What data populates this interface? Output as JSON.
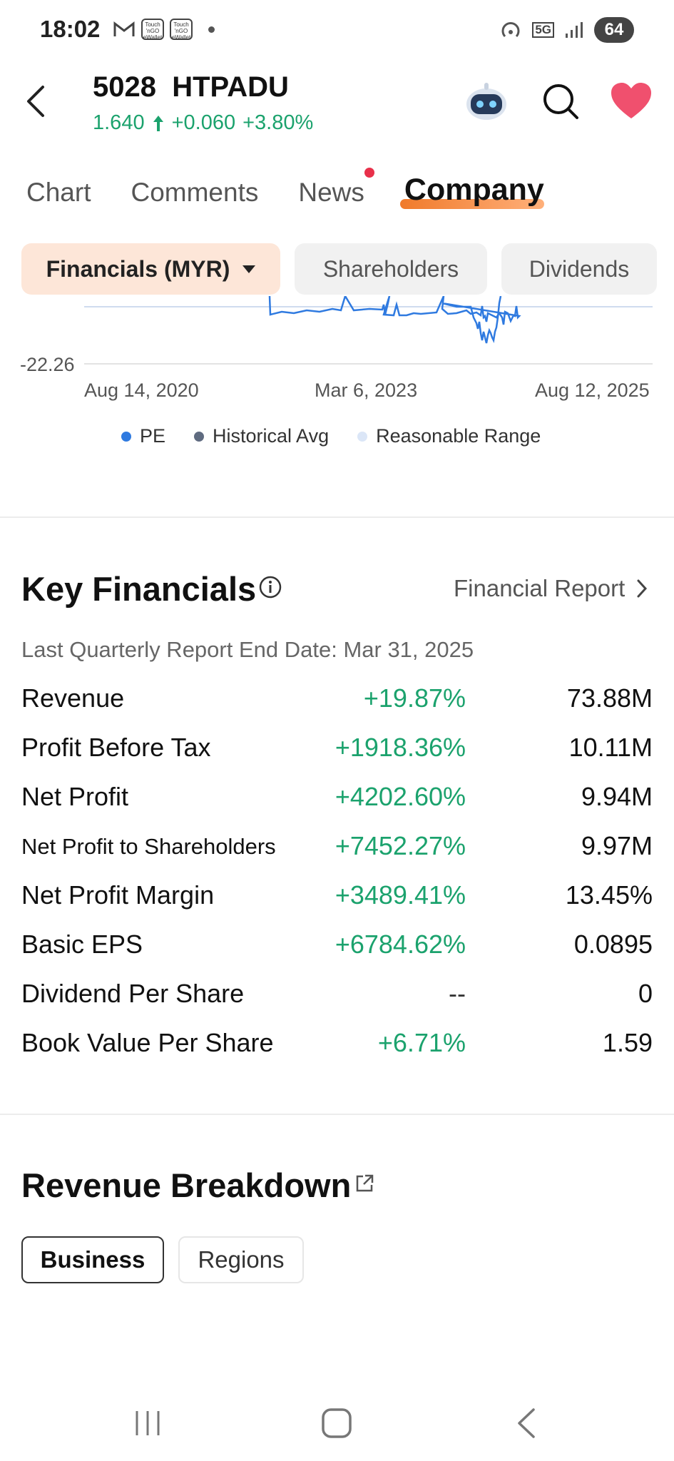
{
  "status_bar": {
    "time": "18:02",
    "left_icons": [
      "gmail-icon",
      "touch-n-go-icon",
      "touch-n-go-icon",
      "dot-icon"
    ],
    "badge_line1": "Touch",
    "badge_line2": "'nGO",
    "badge_line3": "eWallet",
    "network": "5G",
    "battery": "64"
  },
  "header": {
    "code": "5028",
    "name": "HTPADU",
    "price": "1.640",
    "change": "+0.060",
    "change_pct": "+3.80%",
    "up_color": "#1ba26d"
  },
  "tabs": [
    {
      "label": "Chart"
    },
    {
      "label": "Comments"
    },
    {
      "label": "News"
    },
    {
      "label": "Company"
    }
  ],
  "active_tab": "Company",
  "subtabs": {
    "selected": "Financials (MYR)",
    "others": [
      "Shareholders",
      "Dividends"
    ]
  },
  "chart_data": {
    "type": "line",
    "ymin_label": "-22.26",
    "x_ticks": [
      "Aug 14, 2020",
      "Mar 6, 2023",
      "Aug 12, 2025"
    ],
    "legend": [
      {
        "name": "PE",
        "color": "#2f7ae0"
      },
      {
        "name": "Historical Avg",
        "color": "#5f6b80"
      },
      {
        "name": "Reasonable Range",
        "color": "#dbe6f7"
      }
    ]
  },
  "key_financials": {
    "title": "Key Financials",
    "report_link": "Financial Report",
    "report_date": "Last Quarterly Report End Date: Mar 31, 2025",
    "rows": [
      {
        "label": "Revenue",
        "change": "+19.87%",
        "value": "73.88M"
      },
      {
        "label": "Profit Before Tax",
        "change": "+1918.36%",
        "value": "10.11M"
      },
      {
        "label": "Net Profit",
        "change": "+4202.60%",
        "value": "9.94M"
      },
      {
        "label": "Net Profit to Shareholders",
        "change": "+7452.27%",
        "value": "9.97M"
      },
      {
        "label": "Net Profit Margin",
        "change": "+3489.41%",
        "value": "13.45%"
      },
      {
        "label": "Basic EPS",
        "change": "+6784.62%",
        "value": "0.0895"
      },
      {
        "label": "Dividend Per Share",
        "change": "--",
        "value": "0"
      },
      {
        "label": "Book Value Per Share",
        "change": "+6.71%",
        "value": "1.59"
      }
    ]
  },
  "revenue_breakdown": {
    "title": "Revenue Breakdown",
    "toggles": [
      "Business",
      "Regions"
    ],
    "selected": "Business"
  }
}
